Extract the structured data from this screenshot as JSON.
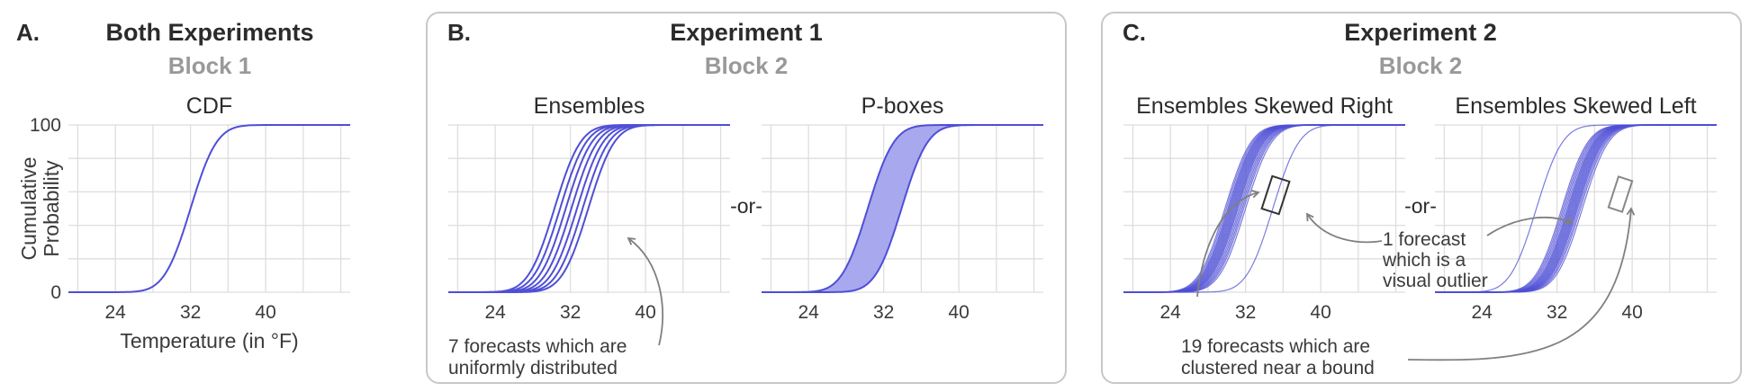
{
  "colors": {
    "curve": "#4f4fd6",
    "band": "#a8a8ee",
    "grid": "#dedede",
    "frame": "#c8c8c8",
    "arrow": "#808080",
    "subtitle": "#999999"
  },
  "panels": [
    {
      "letter": "A.",
      "title": "Both Experiments",
      "subtitle": "Block 1"
    },
    {
      "letter": "B.",
      "title": "Experiment 1",
      "subtitle": "Block 2"
    },
    {
      "letter": "C.",
      "title": "Experiment 2",
      "subtitle": "Block 2"
    }
  ],
  "or_label": "-or-",
  "annotations": {
    "b_uniform": [
      "7 forecasts which are",
      "uniformly distributed"
    ],
    "c_outlier": [
      "1 forecast",
      "which is a",
      "visual outlier"
    ],
    "c_cluster": [
      "19 forecasts which are",
      "clustered near a bound"
    ]
  },
  "chart_data": [
    {
      "id": "A1",
      "type": "line",
      "title": "CDF",
      "xlabel": "Temperature (in °F)",
      "ylabel": "Cumulative Probability",
      "xlim": [
        19,
        49
      ],
      "ylim": [
        0,
        100
      ],
      "xticks": [
        24,
        32,
        40
      ],
      "yticks": [
        0,
        100
      ],
      "series": [
        {
          "kind": "cdf",
          "mean": 32,
          "sd": 2.2
        }
      ]
    },
    {
      "id": "B1",
      "type": "line",
      "title": "Ensembles",
      "xlim": [
        19,
        49
      ],
      "ylim": [
        0,
        100
      ],
      "xticks": [
        24,
        32,
        40
      ],
      "yticks": [],
      "series": [
        {
          "kind": "cdf",
          "mean": 30.3,
          "sd": 2.2
        },
        {
          "kind": "cdf",
          "mean": 30.9,
          "sd": 2.2
        },
        {
          "kind": "cdf",
          "mean": 31.5,
          "sd": 2.2
        },
        {
          "kind": "cdf",
          "mean": 32.1,
          "sd": 2.2
        },
        {
          "kind": "cdf",
          "mean": 32.7,
          "sd": 2.2
        },
        {
          "kind": "cdf",
          "mean": 33.3,
          "sd": 2.2
        },
        {
          "kind": "cdf",
          "mean": 33.9,
          "sd": 2.2
        }
      ]
    },
    {
      "id": "B2",
      "type": "area",
      "title": "P-boxes",
      "xlim": [
        19,
        49
      ],
      "ylim": [
        0,
        100
      ],
      "xticks": [
        24,
        32,
        40
      ],
      "yticks": [],
      "band": {
        "lower_mean": 30.3,
        "upper_mean": 33.9,
        "sd": 2.2
      }
    },
    {
      "id": "C1",
      "type": "line",
      "title": "Ensembles Skewed Right",
      "xlim": [
        19,
        49
      ],
      "ylim": [
        0,
        100
      ],
      "xticks": [
        24,
        32,
        40
      ],
      "yticks": [],
      "series": [
        {
          "kind": "cdf",
          "mean": 29.8,
          "sd": 2.2
        },
        {
          "kind": "cdf",
          "mean": 29.95,
          "sd": 2.2
        },
        {
          "kind": "cdf",
          "mean": 30.1,
          "sd": 2.2
        },
        {
          "kind": "cdf",
          "mean": 30.2,
          "sd": 2.2
        },
        {
          "kind": "cdf",
          "mean": 30.3,
          "sd": 2.2
        },
        {
          "kind": "cdf",
          "mean": 30.4,
          "sd": 2.2
        },
        {
          "kind": "cdf",
          "mean": 30.5,
          "sd": 2.2
        },
        {
          "kind": "cdf",
          "mean": 30.6,
          "sd": 2.2
        },
        {
          "kind": "cdf",
          "mean": 30.7,
          "sd": 2.2
        },
        {
          "kind": "cdf",
          "mean": 30.8,
          "sd": 2.2
        },
        {
          "kind": "cdf",
          "mean": 30.9,
          "sd": 2.2
        },
        {
          "kind": "cdf",
          "mean": 31.0,
          "sd": 2.2
        },
        {
          "kind": "cdf",
          "mean": 31.1,
          "sd": 2.2
        },
        {
          "kind": "cdf",
          "mean": 31.2,
          "sd": 2.2
        },
        {
          "kind": "cdf",
          "mean": 31.35,
          "sd": 2.2
        },
        {
          "kind": "cdf",
          "mean": 31.5,
          "sd": 2.2
        },
        {
          "kind": "cdf",
          "mean": 31.65,
          "sd": 2.2
        },
        {
          "kind": "cdf",
          "mean": 31.8,
          "sd": 2.2
        },
        {
          "kind": "cdf",
          "mean": 32.0,
          "sd": 2.2
        },
        {
          "kind": "cdf",
          "mean": 34.9,
          "sd": 2.2
        }
      ]
    },
    {
      "id": "C2",
      "type": "line",
      "title": "Ensembles Skewed Left",
      "xlim": [
        19,
        49
      ],
      "ylim": [
        0,
        100
      ],
      "xticks": [
        24,
        32,
        40
      ],
      "yticks": [],
      "series": [
        {
          "kind": "cdf",
          "mean": 29.8,
          "sd": 2.2
        },
        {
          "kind": "cdf",
          "mean": 32.5,
          "sd": 2.2
        },
        {
          "kind": "cdf",
          "mean": 32.65,
          "sd": 2.2
        },
        {
          "kind": "cdf",
          "mean": 32.8,
          "sd": 2.2
        },
        {
          "kind": "cdf",
          "mean": 32.95,
          "sd": 2.2
        },
        {
          "kind": "cdf",
          "mean": 33.1,
          "sd": 2.2
        },
        {
          "kind": "cdf",
          "mean": 33.2,
          "sd": 2.2
        },
        {
          "kind": "cdf",
          "mean": 33.3,
          "sd": 2.2
        },
        {
          "kind": "cdf",
          "mean": 33.4,
          "sd": 2.2
        },
        {
          "kind": "cdf",
          "mean": 33.5,
          "sd": 2.2
        },
        {
          "kind": "cdf",
          "mean": 33.6,
          "sd": 2.2
        },
        {
          "kind": "cdf",
          "mean": 33.7,
          "sd": 2.2
        },
        {
          "kind": "cdf",
          "mean": 33.8,
          "sd": 2.2
        },
        {
          "kind": "cdf",
          "mean": 33.9,
          "sd": 2.2
        },
        {
          "kind": "cdf",
          "mean": 34.0,
          "sd": 2.2
        },
        {
          "kind": "cdf",
          "mean": 34.1,
          "sd": 2.2
        },
        {
          "kind": "cdf",
          "mean": 34.2,
          "sd": 2.2
        },
        {
          "kind": "cdf",
          "mean": 34.35,
          "sd": 2.2
        },
        {
          "kind": "cdf",
          "mean": 34.5,
          "sd": 2.2
        },
        {
          "kind": "cdf",
          "mean": 34.7,
          "sd": 2.2
        }
      ]
    }
  ]
}
